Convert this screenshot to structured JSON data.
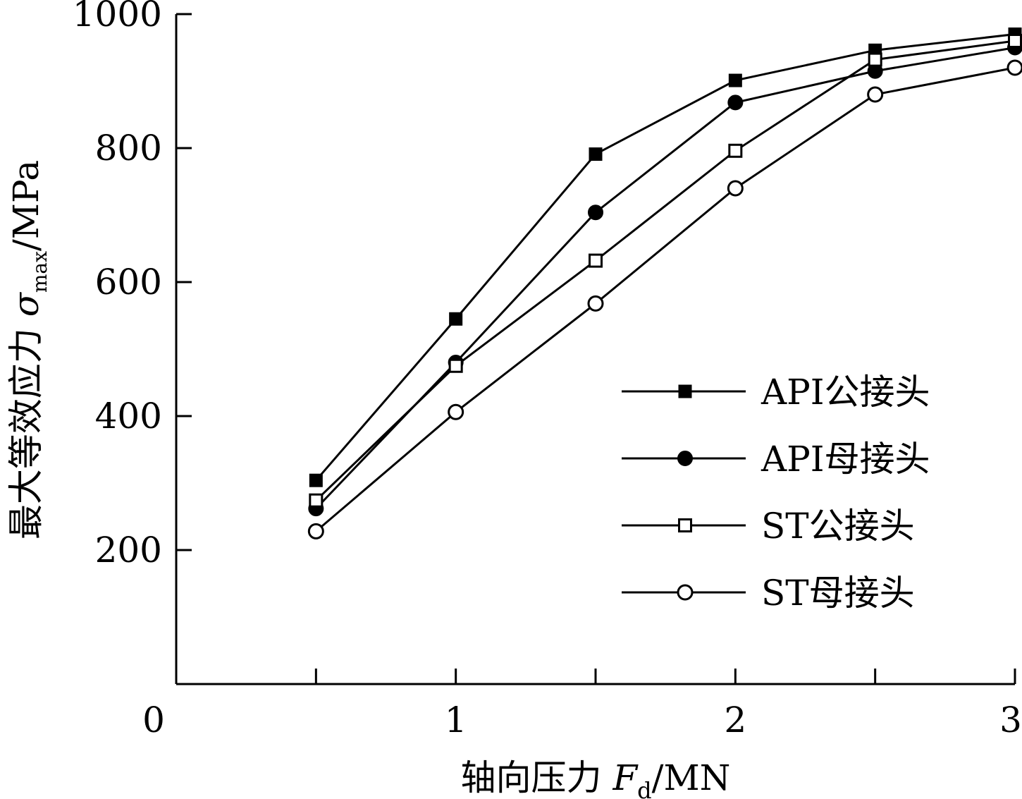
{
  "chart_data": {
    "type": "line",
    "xlabel": "轴向压力 Fd/MN",
    "xlabel_parts": {
      "prefix": "轴向压力 ",
      "var": "F",
      "sub": "d",
      "suffix": "/MN"
    },
    "ylabel": "最大等效应力 σmax/MPa",
    "ylabel_parts": {
      "prefix": "最大等效应力 ",
      "var": "σ",
      "sub": "max",
      "suffix": "/MPa"
    },
    "xlim": [
      0,
      3
    ],
    "ylim": [
      0,
      1000
    ],
    "x_ticks": [
      0.5,
      1,
      1.5,
      2,
      2.5,
      3
    ],
    "x_tick_labels": [
      {
        "value": 0,
        "label": "0"
      },
      {
        "value": 1,
        "label": "1"
      },
      {
        "value": 2,
        "label": "2"
      },
      {
        "value": 3,
        "label": "3"
      }
    ],
    "y_ticks": [
      200,
      400,
      600,
      800,
      1000
    ],
    "y_tick_labels": [
      "200",
      "400",
      "600",
      "800",
      "1000"
    ],
    "grid": false,
    "legend_position": "right",
    "x": [
      0.5,
      1,
      1.5,
      2,
      2.5,
      3
    ],
    "series": [
      {
        "name": "API公接头",
        "marker": "square-filled",
        "values": [
          304,
          545,
          791,
          901,
          946,
          970
        ]
      },
      {
        "name": "API母接头",
        "marker": "circle-filled",
        "values": [
          262,
          480,
          704,
          868,
          915,
          950
        ]
      },
      {
        "name": "ST公接头",
        "marker": "square-open",
        "values": [
          274,
          475,
          632,
          796,
          932,
          960
        ]
      },
      {
        "name": "ST母接头",
        "marker": "circle-open",
        "values": [
          228,
          406,
          568,
          740,
          880,
          920
        ]
      }
    ],
    "color": "#000000"
  }
}
